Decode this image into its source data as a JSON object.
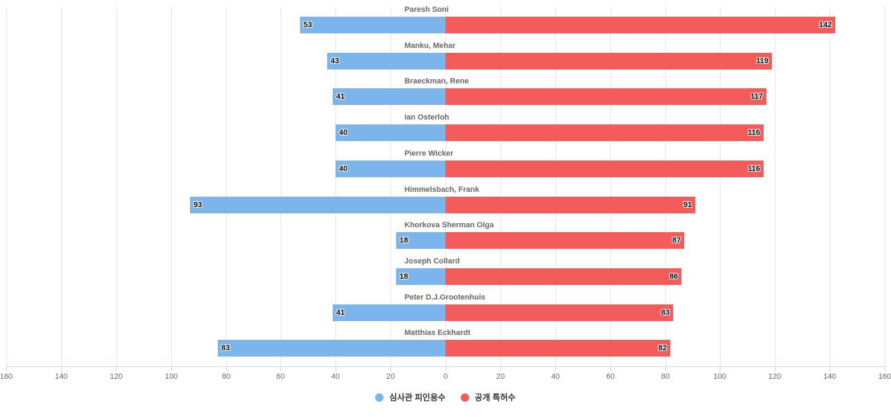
{
  "chart_data": {
    "type": "bar",
    "orientation": "horizontal-diverging",
    "title": "",
    "xlabel": "",
    "ylabel": "",
    "xlim": [
      -160,
      160
    ],
    "grid": true,
    "legend_position": "bottom-center",
    "categories": [
      "Paresh Soni",
      "Manku, Mehar",
      "Braeckman, Rene",
      "Ian Osterloh",
      "Pierre Wicker",
      "Himmelsbach, Frank",
      "Khorkova Sherman Olga",
      "Joseph Collard",
      "Peter D.J.Grootenhuis",
      "Matthias Eckhardt"
    ],
    "series": [
      {
        "name": "심사관 피인용수",
        "color": "#7cb5ec",
        "side": "left",
        "values": [
          53,
          43,
          41,
          40,
          40,
          93,
          18,
          18,
          41,
          83
        ]
      },
      {
        "name": "공개 특허수",
        "color": "#f45b5b",
        "side": "right",
        "values": [
          142,
          119,
          117,
          116,
          116,
          91,
          87,
          86,
          83,
          82
        ]
      }
    ],
    "x_tick_labels": [
      "160",
      "140",
      "120",
      "100",
      "80",
      "60",
      "40",
      "20",
      "0",
      "20",
      "40",
      "60",
      "80",
      "100",
      "120",
      "140",
      "160"
    ]
  },
  "legend": {
    "items": [
      {
        "label": "심사관 피인용수",
        "color": "#7cb5ec"
      },
      {
        "label": "공개 특허수",
        "color": "#f45b5b"
      }
    ]
  }
}
